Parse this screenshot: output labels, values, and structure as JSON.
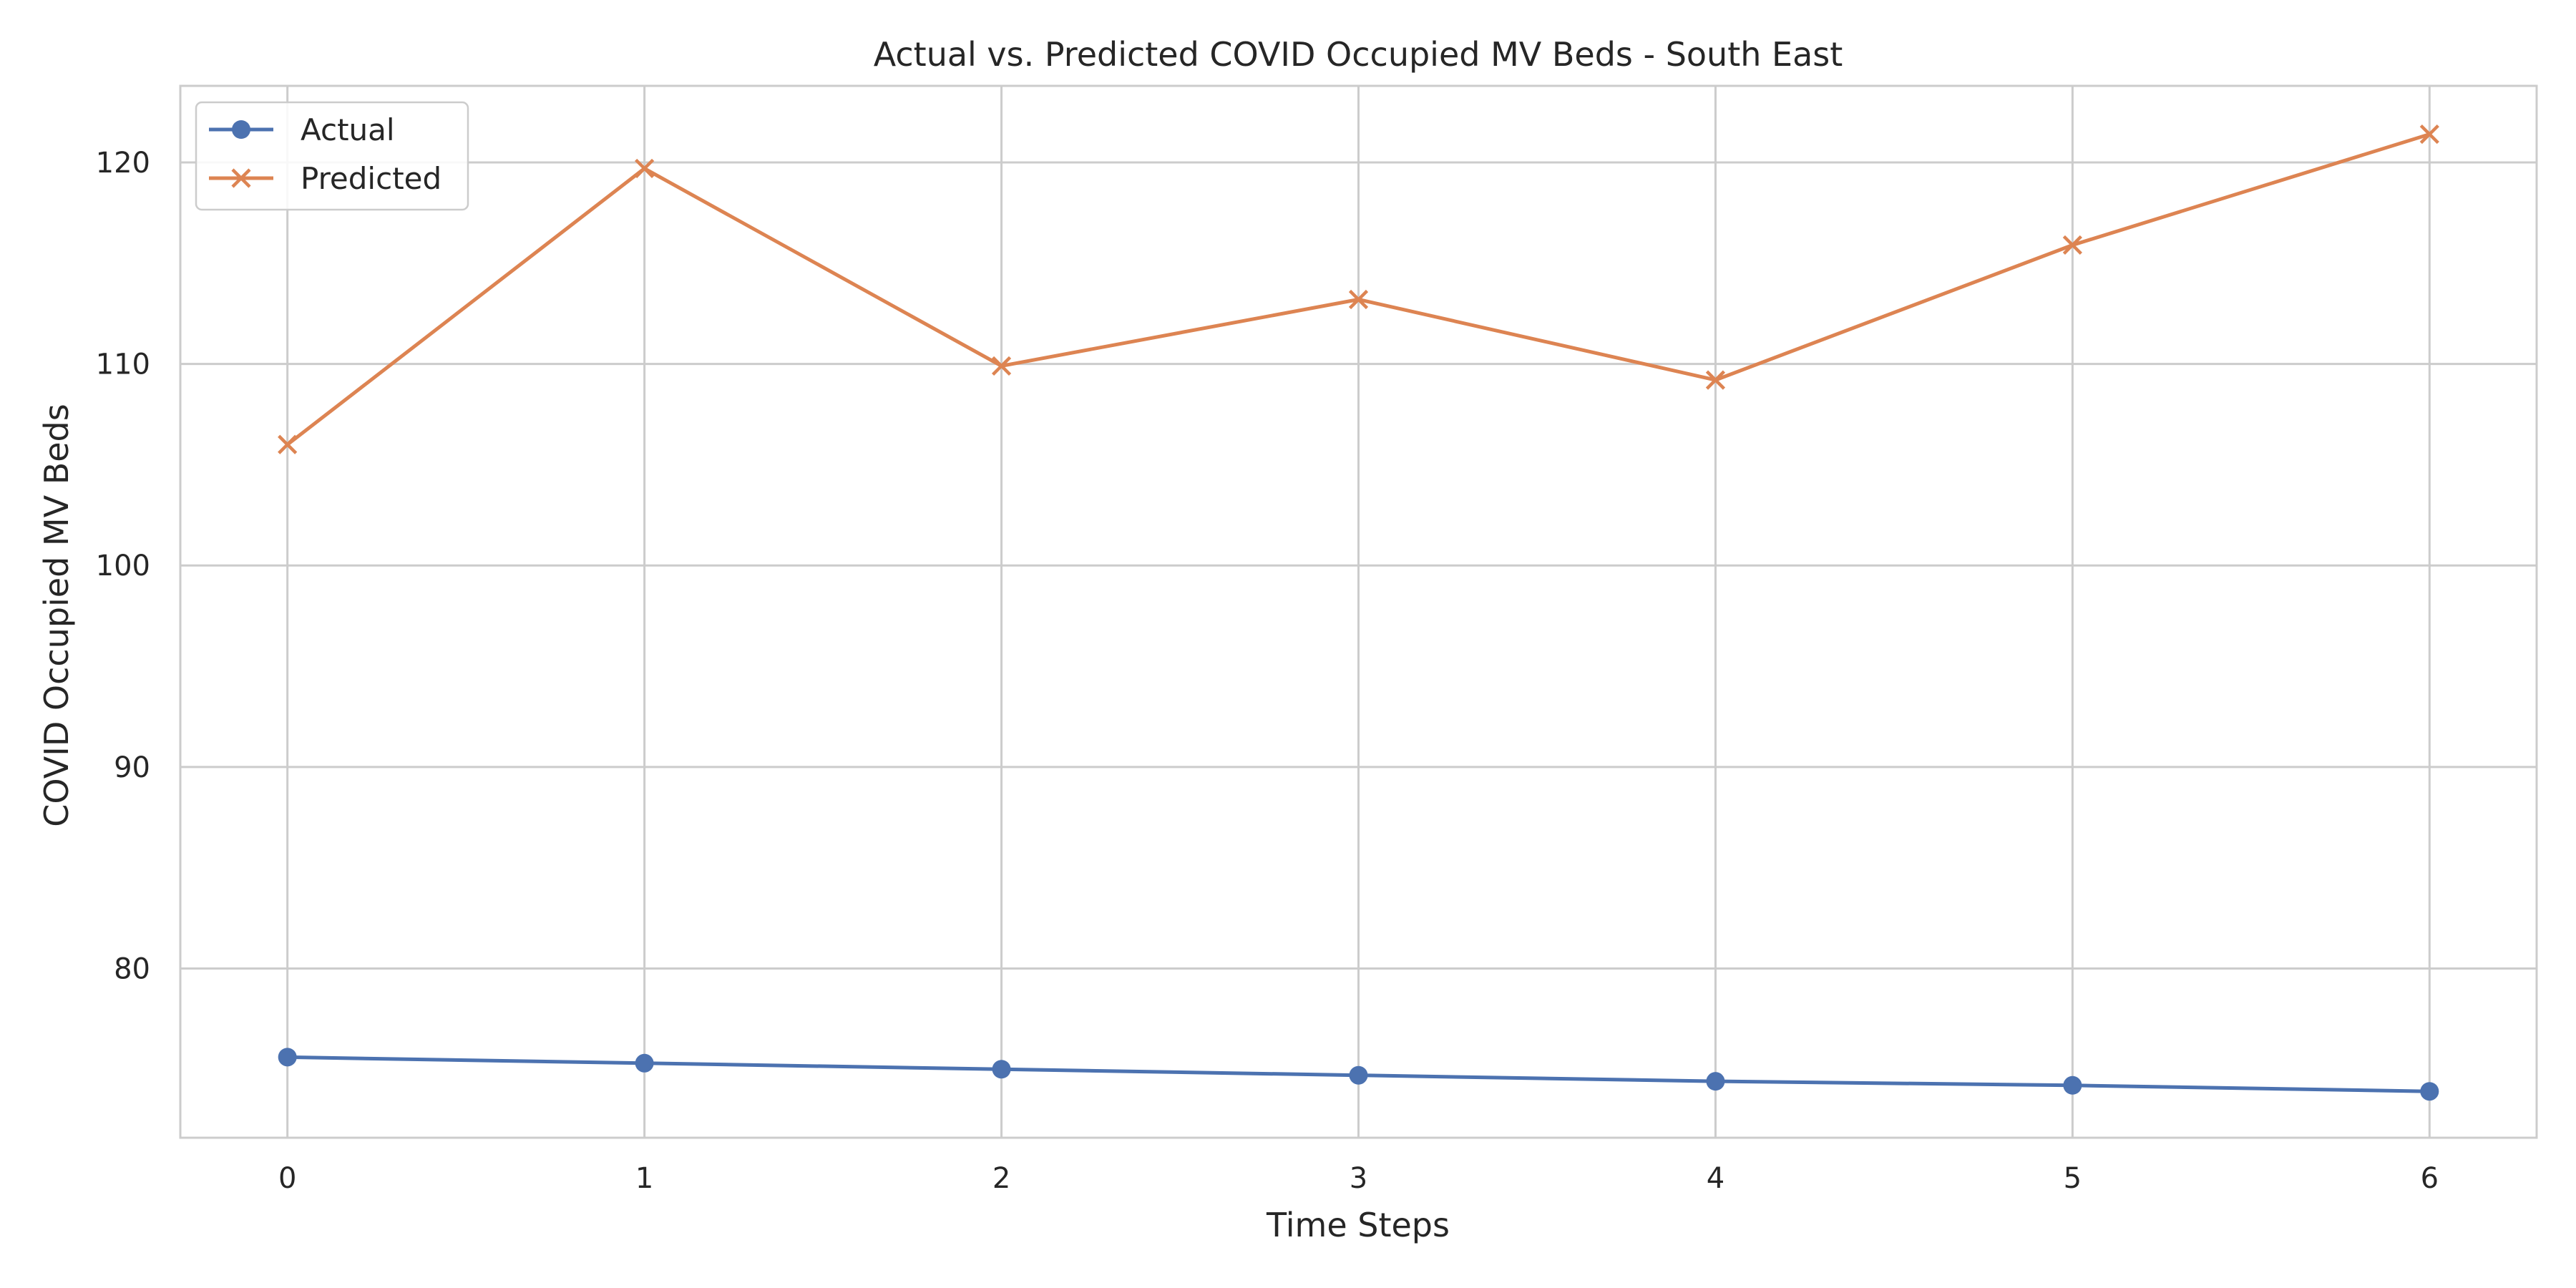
{
  "chart_data": {
    "type": "line",
    "title": "Actual vs. Predicted COVID Occupied MV Beds - South East",
    "xlabel": "Time Steps",
    "ylabel": "COVID Occupied MV Beds",
    "x": [
      0,
      1,
      2,
      3,
      4,
      5,
      6
    ],
    "xticks": [
      "0",
      "1",
      "2",
      "3",
      "4",
      "5",
      "6"
    ],
    "yticks": [
      "80",
      "90",
      "100",
      "110",
      "120"
    ],
    "xlim": [
      -0.3,
      6.3
    ],
    "ylim": [
      71.6,
      123.8
    ],
    "grid": true,
    "legend_position": "top-left",
    "series": [
      {
        "name": "Actual",
        "marker": "circle",
        "color": "#4c72b0",
        "values": [
          75.6,
          75.3,
          75.0,
          74.7,
          74.4,
          74.2,
          73.9
        ]
      },
      {
        "name": "Predicted",
        "marker": "x",
        "color": "#dd8452",
        "values": [
          106.0,
          119.7,
          109.9,
          113.2,
          109.2,
          115.9,
          121.4
        ]
      }
    ]
  }
}
